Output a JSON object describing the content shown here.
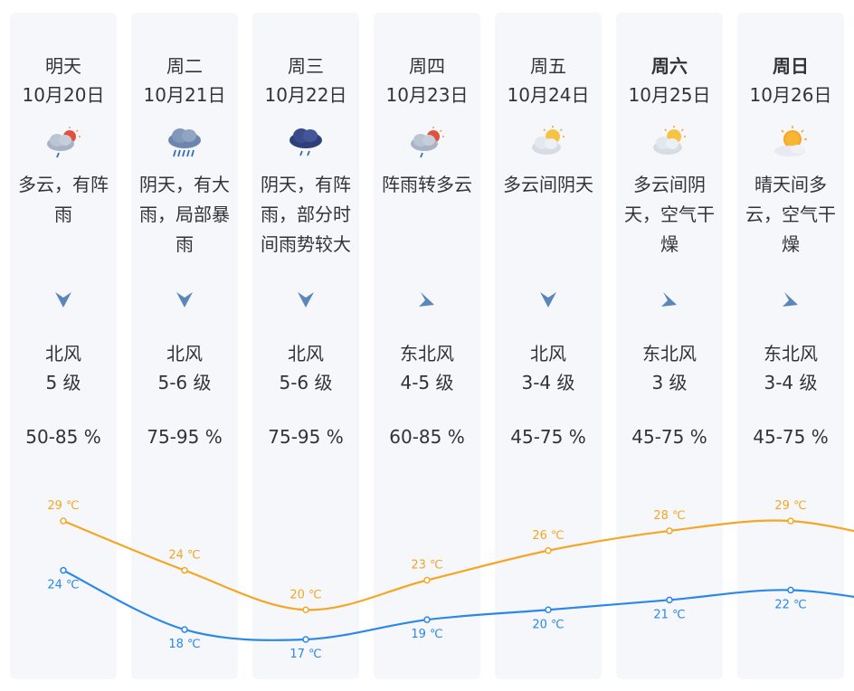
{
  "days": [
    {
      "day": "明天",
      "bold": false,
      "date": "10月20日",
      "icon": "cloudy-shower-icon",
      "desc": "多云，有阵雨",
      "wind_dir": "北风",
      "wind_level": "5 级",
      "arrow": "north-wind-arrow-icon",
      "humidity": "50-85 %"
    },
    {
      "day": "周二",
      "bold": false,
      "date": "10月21日",
      "icon": "heavy-rain-icon",
      "desc": "阴天，有大雨，局部暴雨",
      "wind_dir": "北风",
      "wind_level": "5-6 级",
      "arrow": "north-wind-arrow-icon",
      "humidity": "75-95 %"
    },
    {
      "day": "周三",
      "bold": false,
      "date": "10月22日",
      "icon": "overcast-shower-icon",
      "desc": "阴天，有阵雨，部分时间雨势较大",
      "wind_dir": "北风",
      "wind_level": "5-6 级",
      "arrow": "north-wind-arrow-icon",
      "humidity": "75-95 %"
    },
    {
      "day": "周四",
      "bold": false,
      "date": "10月23日",
      "icon": "cloudy-shower-icon",
      "desc": "阵雨转多云",
      "wind_dir": "东北风",
      "wind_level": "4-5 级",
      "arrow": "northeast-wind-arrow-icon",
      "humidity": "60-85 %"
    },
    {
      "day": "周五",
      "bold": false,
      "date": "10月24日",
      "icon": "partly-cloudy-icon",
      "desc": "多云间阴天",
      "wind_dir": "北风",
      "wind_level": "3-4 级",
      "arrow": "north-wind-arrow-icon",
      "humidity": "45-75 %"
    },
    {
      "day": "周六",
      "bold": true,
      "date": "10月25日",
      "icon": "partly-cloudy-icon",
      "desc": "多云间阴天，空气干燥",
      "wind_dir": "东北风",
      "wind_level": "3 级",
      "arrow": "northeast-wind-arrow-icon",
      "humidity": "45-75 %"
    },
    {
      "day": "周日",
      "bold": true,
      "date": "10月26日",
      "icon": "sunny-cloudy-icon",
      "desc": "晴天间多云，空气干燥",
      "wind_dir": "东北风",
      "wind_level": "3-4 级",
      "arrow": "northeast-wind-arrow-icon",
      "humidity": "45-75 %"
    }
  ],
  "chart_data": {
    "type": "line",
    "categories": [
      "10月20日",
      "10月21日",
      "10月22日",
      "10月23日",
      "10月24日",
      "10月25日",
      "10月26日"
    ],
    "series": [
      {
        "values": [
          29,
          24,
          20,
          23,
          26,
          28,
          29
        ],
        "color": "#f5a623",
        "labels": [
          "29 ℃",
          "24 ℃",
          "20 ℃",
          "23 ℃",
          "26 ℃",
          "28 ℃",
          "29 ℃"
        ]
      },
      {
        "values": [
          24,
          18,
          17,
          19,
          20,
          21,
          22
        ],
        "color": "#2b87e8",
        "labels": [
          "24 ℃",
          "18 ℃",
          "17 ℃",
          "19 ℃",
          "20 ℃",
          "21 ℃",
          "22 ℃"
        ]
      }
    ]
  },
  "colors": {
    "card_bg": "#f5f7fb",
    "text": "#333333",
    "arrow": "#5b86b9",
    "high": "#f5a623",
    "low": "#2b87e8"
  }
}
